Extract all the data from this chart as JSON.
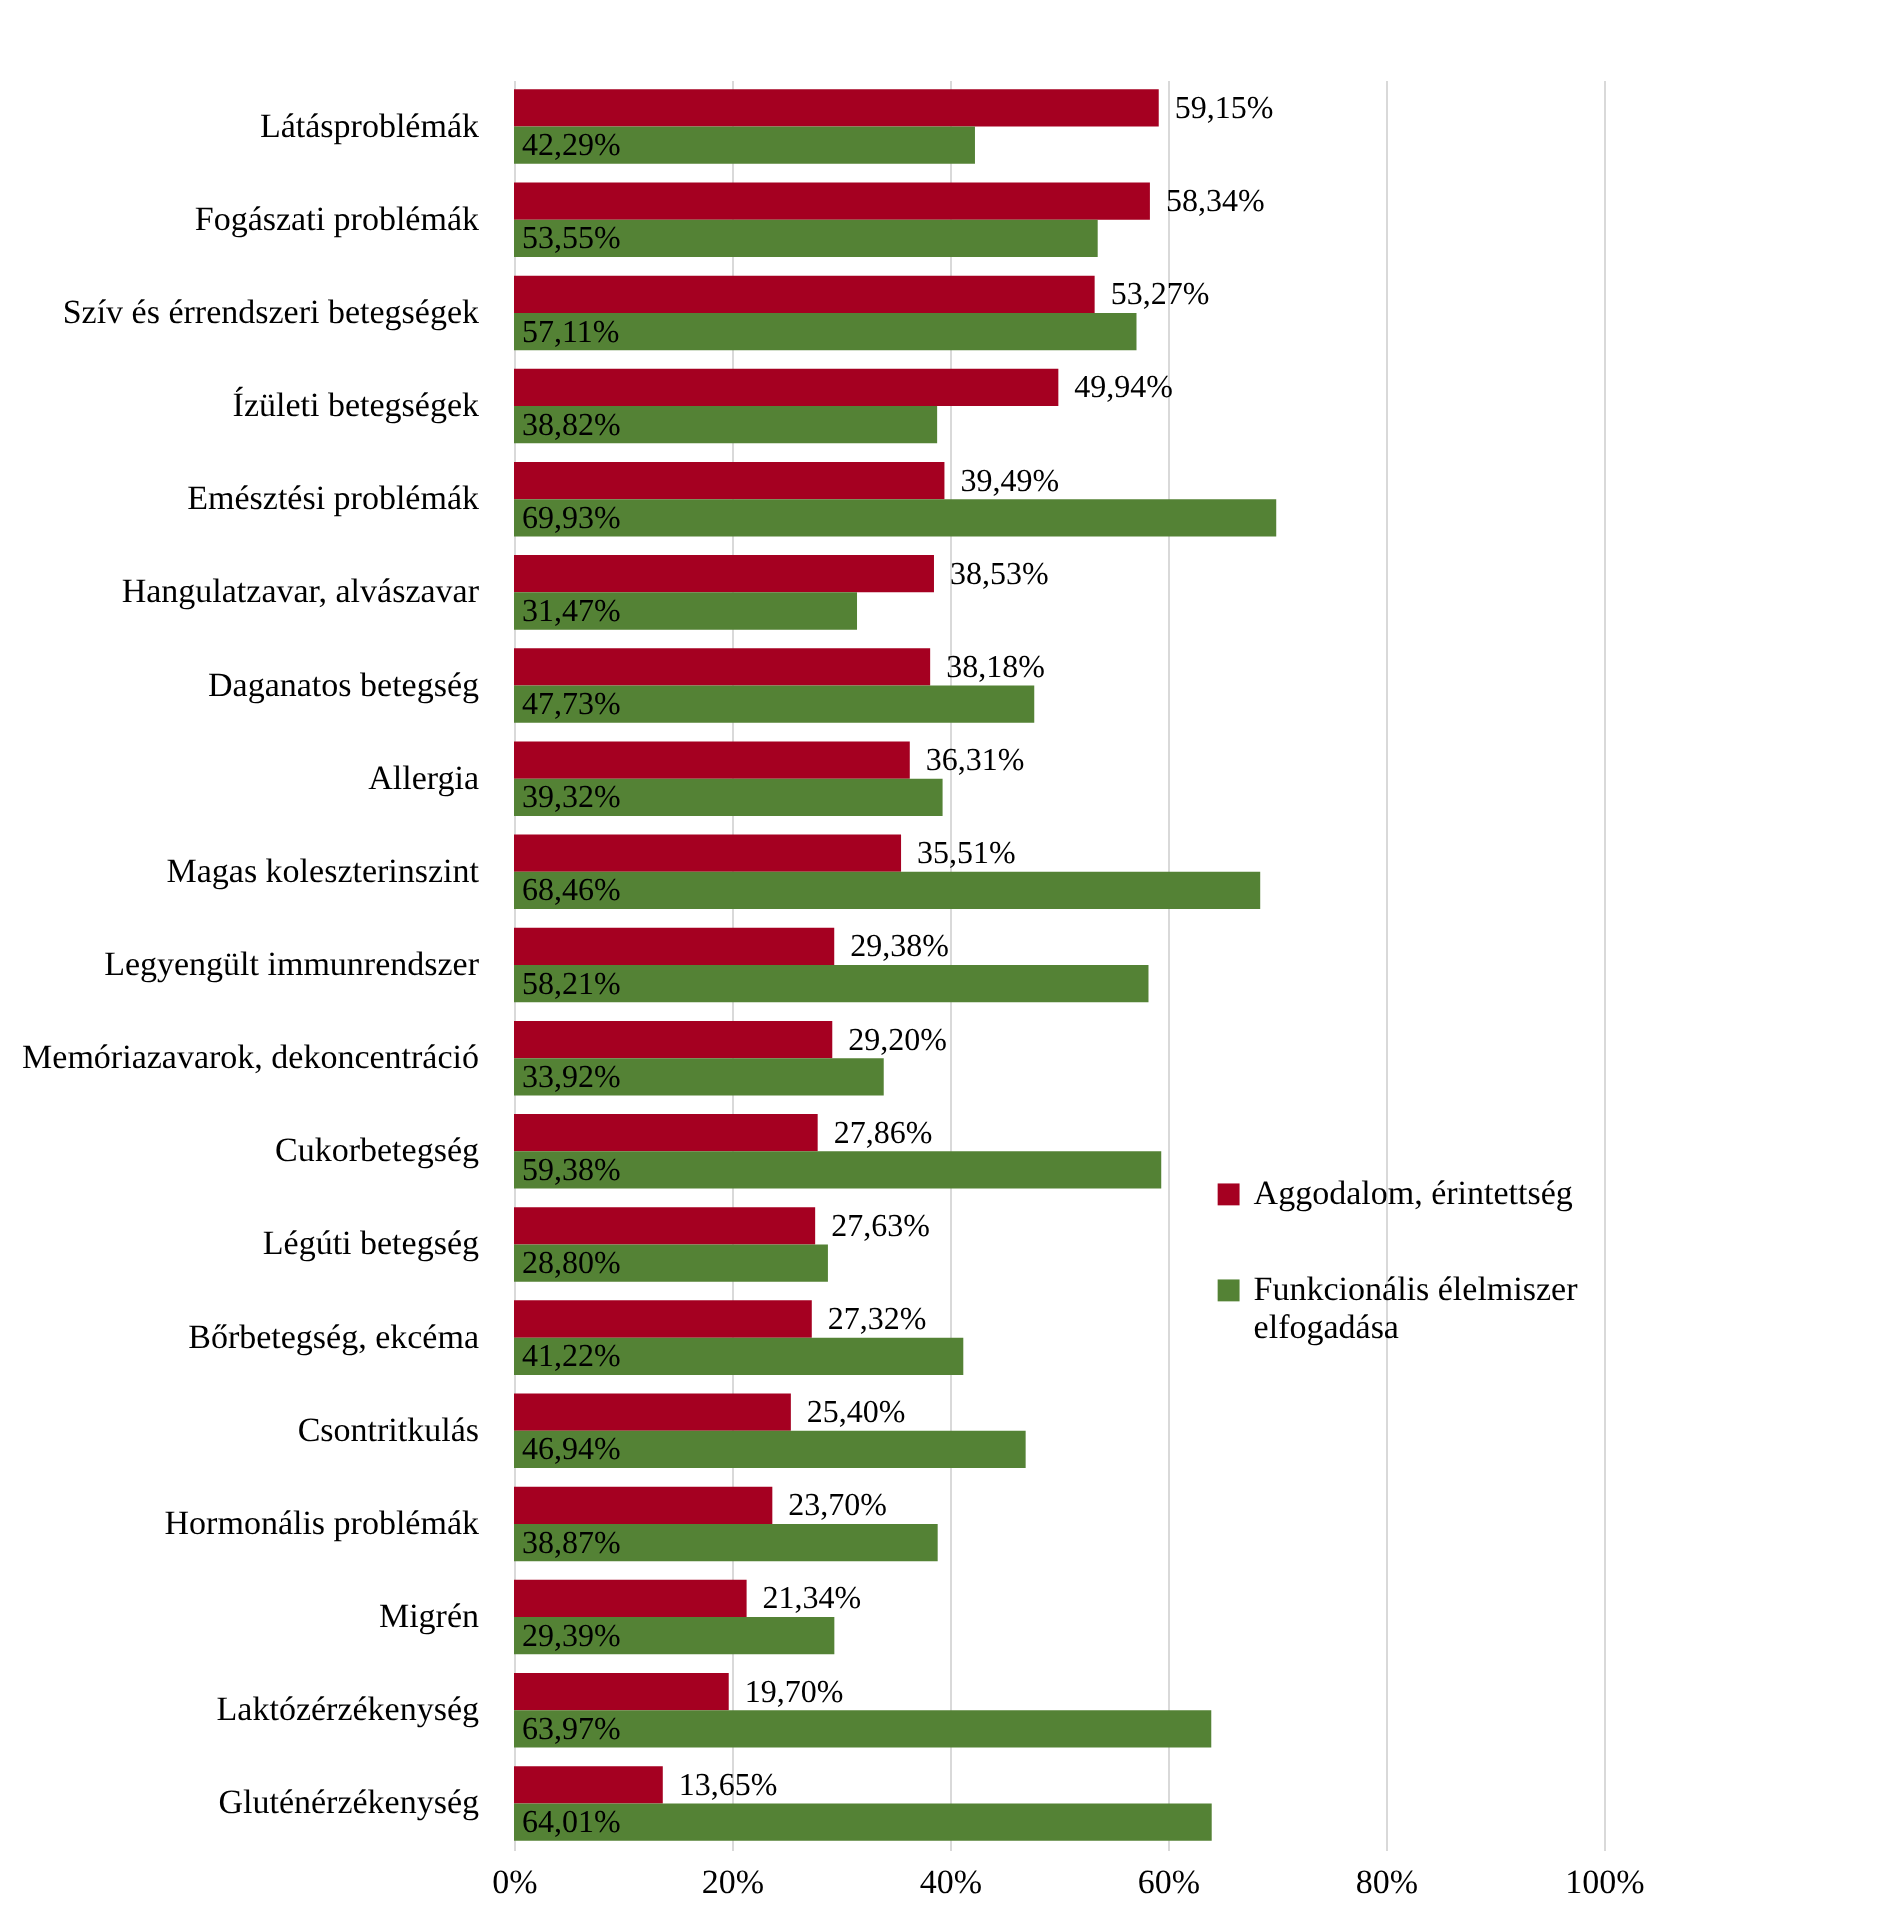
{
  "chart_data": {
    "type": "bar",
    "orientation": "horizontal",
    "categories": [
      "Látásproblémák",
      "Fogászati problémák",
      "Szív és érrendszeri betegségek",
      "Ízületi betegségek",
      "Emésztési problémák",
      "Hangulatzavar, alvászavar",
      "Daganatos betegség",
      "Allergia",
      "Magas koleszterinszint",
      "Legyengült immunrendszer",
      "Memóriazavarok, dekoncentráció",
      "Cukorbetegség",
      "Légúti betegség",
      "Bőrbetegség, ekcéma",
      "Csontritkulás",
      "Hormonális problémák",
      "Migrén",
      "Laktózérzékenység",
      "Gluténérzékenység"
    ],
    "series": [
      {
        "name": "Aggodalom, érintettség",
        "color": "#a50021",
        "values": [
          59.15,
          58.34,
          53.27,
          49.94,
          39.49,
          38.53,
          38.18,
          36.31,
          35.51,
          29.38,
          29.2,
          27.86,
          27.63,
          27.32,
          25.4,
          23.7,
          21.34,
          19.7,
          13.65
        ],
        "value_labels": [
          "59,15%",
          "58,34%",
          "53,27%",
          "49,94%",
          "39,49%",
          "38,53%",
          "38,18%",
          "36,31%",
          "35,51%",
          "29,38%",
          "29,20%",
          "27,86%",
          "27,63%",
          "27,32%",
          "25,40%",
          "23,70%",
          "21,34%",
          "19,70%",
          "13,65%"
        ]
      },
      {
        "name": "Funkcionális élelmiszer elfogadása",
        "color": "#548235",
        "values": [
          42.29,
          53.55,
          57.11,
          38.82,
          69.93,
          31.47,
          47.73,
          39.32,
          68.46,
          58.21,
          33.92,
          59.38,
          28.8,
          41.22,
          46.94,
          38.87,
          29.39,
          63.97,
          64.01
        ],
        "value_labels": [
          "42,29%",
          "53,55%",
          "57,11%",
          "38,82%",
          "69,93%",
          "31,47%",
          "47,73%",
          "39,32%",
          "68,46%",
          "58,21%",
          "33,92%",
          "59,38%",
          "28,80%",
          "41,22%",
          "46,94%",
          "38,87%",
          "29,39%",
          "63,97%",
          "64,01%"
        ]
      }
    ],
    "xlim": [
      0,
      100
    ],
    "xticks": [
      {
        "value": 0,
        "label": "0%"
      },
      {
        "value": 20,
        "label": "20%"
      },
      {
        "value": 40,
        "label": "40%"
      },
      {
        "value": 60,
        "label": "60%"
      },
      {
        "value": 80,
        "label": "80%"
      },
      {
        "value": 100,
        "label": "100%"
      }
    ],
    "grid": "x",
    "legend": "right"
  }
}
